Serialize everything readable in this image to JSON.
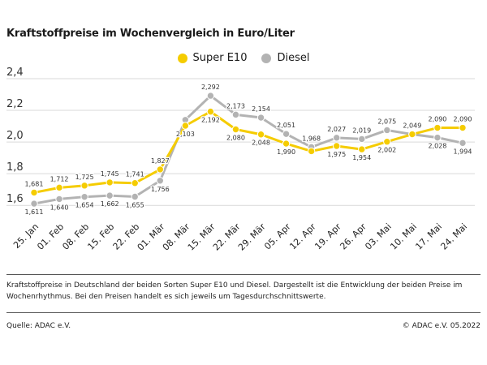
{
  "header": {
    "title": "Kraftstoffpreise im Wochenvergleich in Euro/Liter"
  },
  "legend": [
    {
      "label": "Super E10",
      "color": "#f5cc00",
      "icon": "legend-dot-icon"
    },
    {
      "label": "Diesel",
      "color": "#b3b3b3",
      "icon": "legend-dot-icon"
    }
  ],
  "chart_data": {
    "type": "line",
    "categories": [
      "25. Jan",
      "01. Feb",
      "08. Feb",
      "15. Feb",
      "22. Feb",
      "01. Mär",
      "08. Mär",
      "15. Mär",
      "22. Mär",
      "29. Mär",
      "05. Apr",
      "12. Apr",
      "19. Apr",
      "26. Apr",
      "03. Mai",
      "10. Mai",
      "17. Mai",
      "24. Mai"
    ],
    "series": [
      {
        "name": "Super E10",
        "color": "#f5cc00",
        "values": [
          1.681,
          1.712,
          1.725,
          1.745,
          1.741,
          1.827,
          2.103,
          2.192,
          2.08,
          2.048,
          1.99,
          1.942,
          1.975,
          1.954,
          2.002,
          2.049,
          2.09,
          2.09
        ],
        "labels": [
          "1,681",
          "1,712",
          "1,725",
          "1,745",
          "1,741",
          "1,827",
          "2,103",
          "2,192",
          "2,080",
          "2,048",
          "1,990",
          "",
          "1,975",
          "1,954",
          "2,002",
          "",
          "2,090",
          "2,090"
        ]
      },
      {
        "name": "Diesel",
        "color": "#b3b3b3",
        "values": [
          1.611,
          1.64,
          1.654,
          1.662,
          1.655,
          1.756,
          2.14,
          2.292,
          2.173,
          2.154,
          2.051,
          1.968,
          2.027,
          2.019,
          2.075,
          2.049,
          2.028,
          1.994
        ],
        "labels": [
          "1,611",
          "1,640",
          "1,654",
          "1,662",
          "1,655",
          "1,756",
          "",
          "2,292",
          "2,173",
          "2,154",
          "2,051",
          "1,968",
          "2,027",
          "2,019",
          "2,075",
          "2,049",
          "2,028",
          "1,994"
        ]
      }
    ],
    "yticks": [
      1.6,
      1.8,
      2.0,
      2.2,
      2.4
    ],
    "ytick_labels": [
      "1,6",
      "1,8",
      "2,0",
      "2,2",
      "2,4"
    ],
    "ylim": [
      1.55,
      2.4
    ],
    "grid": true,
    "legend_position": "top-center"
  },
  "caption": "Kraftstoffpreise in Deutschland der beiden Sorten Super E10 und Diesel. Dargestellt ist die Entwicklung der beiden Preise im Wochenrhythmus. Bei den Preisen handelt es sich jeweils um Tagesdurchschnittswerte.",
  "footer": {
    "source": "Quelle: ADAC e.V.",
    "copyright": "© ADAC e.V. 05.2022"
  }
}
